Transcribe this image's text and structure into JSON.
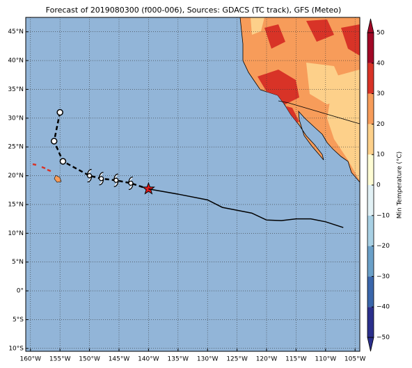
{
  "chart_data": {
    "type": "map",
    "title": "Forecast of 2019080300 (f000-006), Sources: GDACS (TC track), GFS (Meteo)",
    "xlim": [
      -160.8,
      -104.2
    ],
    "ylim": [
      -10.5,
      47.5
    ],
    "xticks": [
      {
        "value": -160,
        "label": "160°W"
      },
      {
        "value": -155,
        "label": "155°W"
      },
      {
        "value": -150,
        "label": "150°W"
      },
      {
        "value": -145,
        "label": "145°W"
      },
      {
        "value": -140,
        "label": "140°W"
      },
      {
        "value": -135,
        "label": "135°W"
      },
      {
        "value": -130,
        "label": "130°W"
      },
      {
        "value": -125,
        "label": "125°W"
      },
      {
        "value": -120,
        "label": "120°W"
      },
      {
        "value": -115,
        "label": "115°W"
      },
      {
        "value": -110,
        "label": "110°W"
      },
      {
        "value": -105,
        "label": "105°W"
      }
    ],
    "yticks": [
      {
        "value": -10,
        "label": "10°S"
      },
      {
        "value": -5,
        "label": "5°S"
      },
      {
        "value": 0,
        "label": "0°"
      },
      {
        "value": 5,
        "label": "5°N"
      },
      {
        "value": 10,
        "label": "10°N"
      },
      {
        "value": 15,
        "label": "15°N"
      },
      {
        "value": 20,
        "label": "20°N"
      },
      {
        "value": 25,
        "label": "25°N"
      },
      {
        "value": 30,
        "label": "30°N"
      },
      {
        "value": 35,
        "label": "35°N"
      },
      {
        "value": 40,
        "label": "40°N"
      },
      {
        "value": 45,
        "label": "45°N"
      }
    ],
    "grid": true,
    "series": [
      {
        "color": "#000000",
        "dashed": true,
        "x": [
          -155,
          -156,
          -154.5,
          -150,
          -148,
          -145.5,
          -143,
          -140
        ],
        "y": [
          31,
          26,
          22.5,
          20,
          19.5,
          19.2,
          18.7,
          17.7
        ],
        "markers": [
          "circle",
          "circle",
          "circle",
          "storm",
          "storm",
          "storm",
          "storm",
          "star"
        ]
      },
      {
        "color": "#000000",
        "dashed": false,
        "x": [
          -140,
          -135,
          -130,
          -127.5,
          -125,
          -122.5,
          -120,
          -117.5,
          -115,
          -112.5,
          -110,
          -107
        ],
        "y": [
          17.7,
          16.8,
          15.8,
          14.5,
          14,
          13.5,
          12.3,
          12.2,
          12.5,
          12.5,
          12,
          11
        ]
      }
    ],
    "colorbar": {
      "label": "Min Temperature (°C)",
      "zlim": [
        -50,
        50
      ],
      "zticks": [
        {
          "value": -50,
          "label": "−50"
        },
        {
          "value": -40,
          "label": "−40"
        },
        {
          "value": -30,
          "label": "−30"
        },
        {
          "value": -20,
          "label": "−20"
        },
        {
          "value": -10,
          "label": "−10"
        },
        0,
        10,
        20,
        30,
        40,
        50
      ],
      "colors": [
        "#2b2f8c",
        "#3a66ab",
        "#6aa0c8",
        "#a8d0e4",
        "#e2f1f5",
        "#fefcd4",
        "#fdd08a",
        "#f79c5a",
        "#d83327",
        "#a10826"
      ],
      "extend": "both"
    }
  }
}
